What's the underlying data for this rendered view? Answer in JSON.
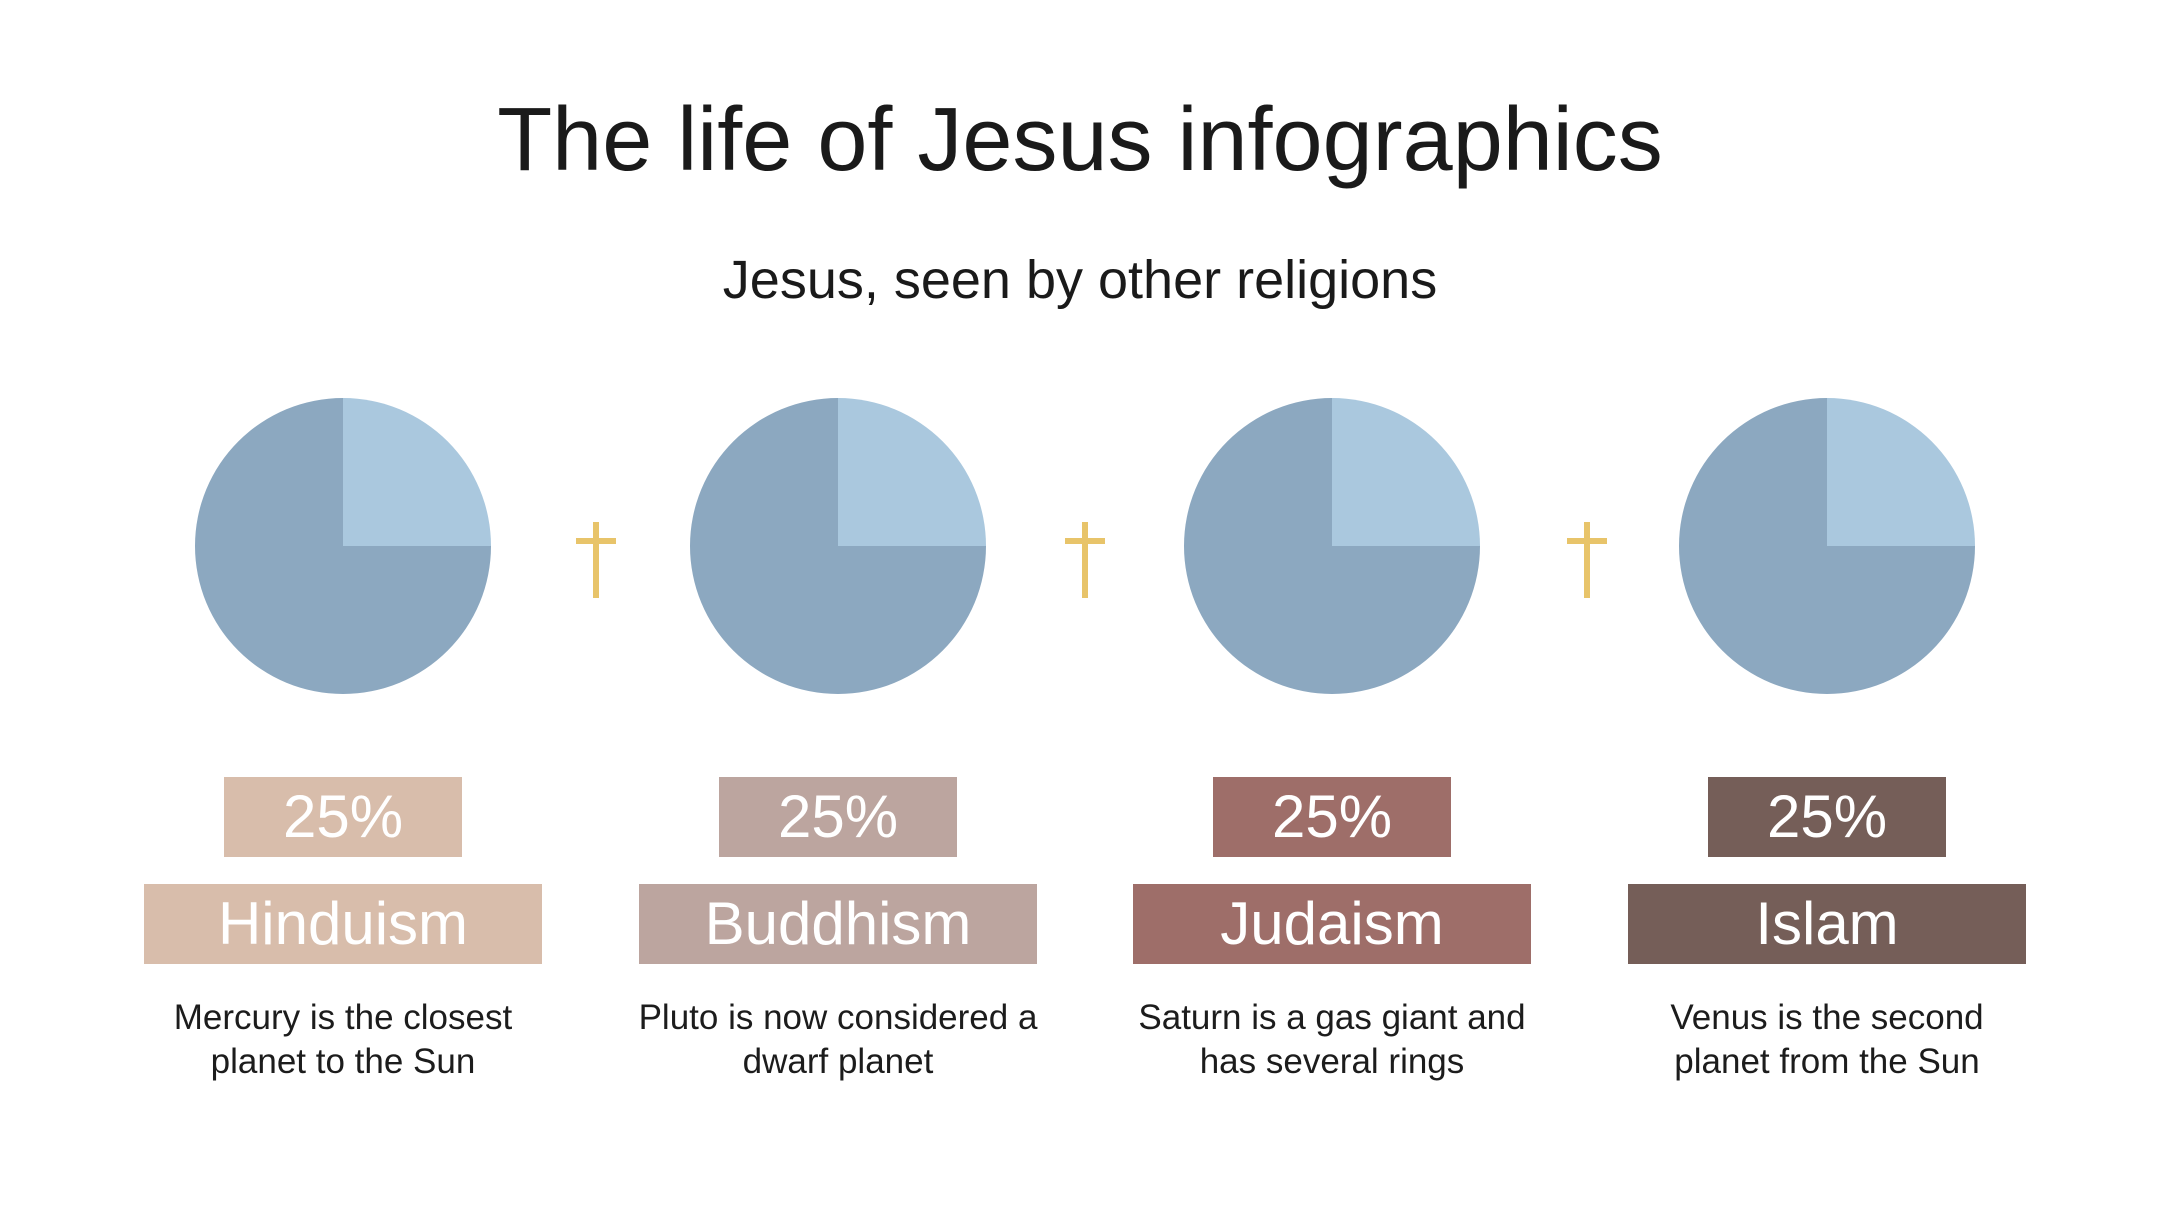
{
  "title": "The life of Jesus infographics",
  "subtitle": "Jesus, seen by other religions",
  "colors": {
    "pie_main": "#8ca8c0",
    "pie_slice": "#aac8de",
    "cross": "#e8c46a"
  },
  "chart_data": [
    {
      "type": "pie",
      "slices": [
        {
          "value": 25,
          "color": "#aac8de"
        },
        {
          "value": 75,
          "color": "#8ca8c0"
        }
      ],
      "percent_label": "25%",
      "category": "Hinduism",
      "description_line1": "Mercury is the closest",
      "description_line2": "planet to the Sun",
      "label_color": "#d8bdab"
    },
    {
      "type": "pie",
      "slices": [
        {
          "value": 25,
          "color": "#aac8de"
        },
        {
          "value": 75,
          "color": "#8ca8c0"
        }
      ],
      "percent_label": "25%",
      "category": "Buddhism",
      "description_line1": "Pluto is now considered a",
      "description_line2": "dwarf planet",
      "label_color": "#bca59f"
    },
    {
      "type": "pie",
      "slices": [
        {
          "value": 25,
          "color": "#aac8de"
        },
        {
          "value": 75,
          "color": "#8ca8c0"
        }
      ],
      "percent_label": "25%",
      "category": "Judaism",
      "description_line1": "Saturn is a gas giant and",
      "description_line2": "has several rings",
      "label_color": "#9e6e69"
    },
    {
      "type": "pie",
      "slices": [
        {
          "value": 25,
          "color": "#aac8de"
        },
        {
          "value": 75,
          "color": "#8ca8c0"
        }
      ],
      "percent_label": "25%",
      "category": "Islam",
      "description_line1": "Venus is the second",
      "description_line2": "planet from the Sun",
      "label_color": "#755e58"
    }
  ],
  "crosses": [
    {
      "icon": "cross-icon"
    },
    {
      "icon": "cross-icon"
    },
    {
      "icon": "cross-icon"
    }
  ]
}
